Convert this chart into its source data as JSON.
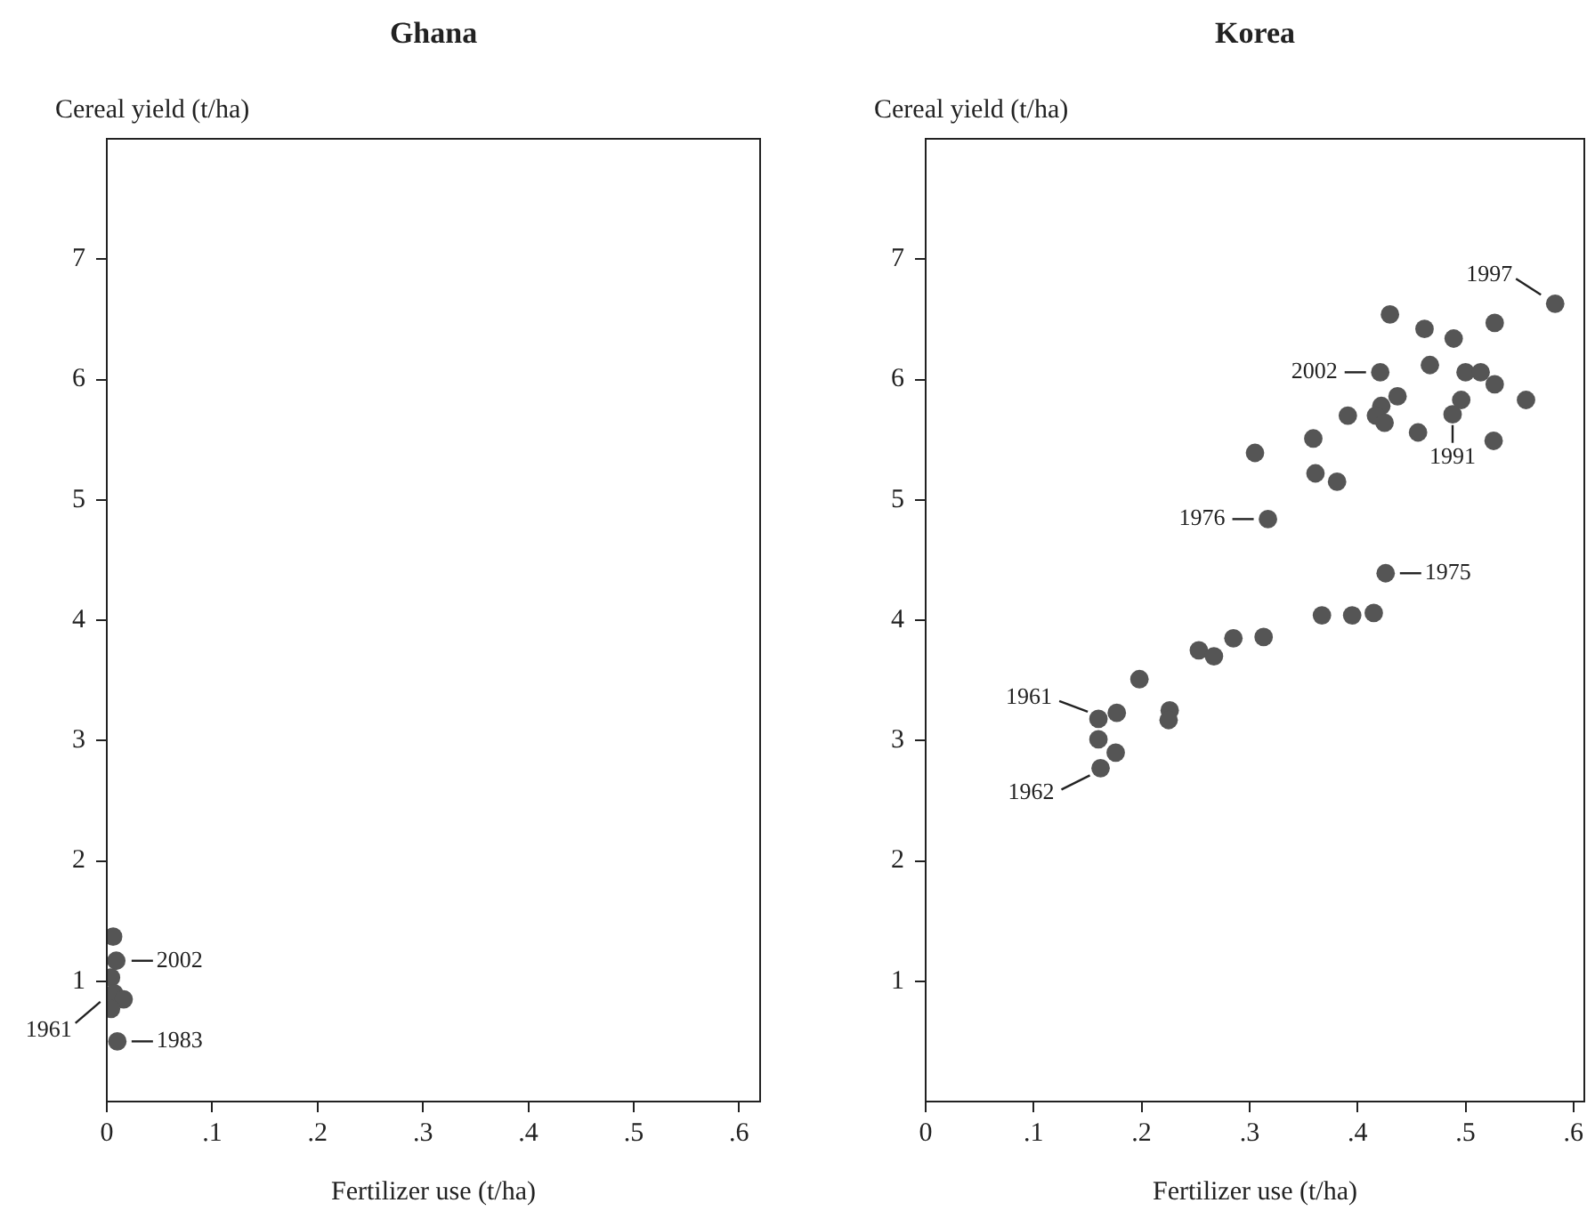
{
  "chart_data": [
    {
      "type": "scatter",
      "title": "Ghana",
      "xlabel": "Fertilizer use (t/ha)",
      "ylabel": "Cereal yield (t/ha)",
      "xlim": [
        0,
        0.62
      ],
      "ylim": [
        0,
        8
      ],
      "xticks": [
        0,
        {
          "value": 0.1,
          "label": ".1"
        },
        {
          "value": 0.2,
          "label": ".2"
        },
        {
          "value": 0.3,
          "label": ".3"
        },
        {
          "value": 0.4,
          "label": ".4"
        },
        {
          "value": 0.5,
          "label": ".5"
        },
        {
          "value": 0.6,
          "label": ".6"
        }
      ],
      "yticks": [
        1,
        2,
        3,
        4,
        5,
        6,
        7
      ],
      "grid": false,
      "legend": false,
      "marker": "circle",
      "series": [
        {
          "color": "#555555",
          "x": [
            0.006,
            0.009,
            0.004,
            0.007,
            0.016,
            0.004,
            0.01
          ],
          "values": [
            1.37,
            1.17,
            1.03,
            0.9,
            0.85,
            0.77,
            0.5
          ]
        }
      ],
      "annotations": [
        {
          "text": "2002",
          "x": 0.01,
          "y": 1.17
        },
        {
          "text": "1961",
          "x": 0.004,
          "y": 0.77
        },
        {
          "text": "1983",
          "x": 0.01,
          "y": 0.5
        }
      ]
    },
    {
      "type": "scatter",
      "title": "Korea",
      "xlabel": "Fertilizer use (t/ha)",
      "ylabel": "Cereal yield (t/ha)",
      "xlim": [
        0,
        0.61
      ],
      "ylim": [
        0,
        8
      ],
      "xticks": [
        0,
        {
          "value": 0.1,
          "label": ".1"
        },
        {
          "value": 0.2,
          "label": ".2"
        },
        {
          "value": 0.3,
          "label": ".3"
        },
        {
          "value": 0.4,
          "label": ".4"
        },
        {
          "value": 0.5,
          "label": ".5"
        },
        {
          "value": 0.6,
          "label": ".6"
        }
      ],
      "yticks": [
        1,
        2,
        3,
        4,
        5,
        6,
        7
      ],
      "grid": false,
      "legend": false,
      "marker": "circle",
      "series": [
        {
          "color": "#555555",
          "x": [
            0.583,
            0.43,
            0.462,
            0.489,
            0.527,
            0.421,
            0.467,
            0.5,
            0.514,
            0.527,
            0.437,
            0.422,
            0.496,
            0.556,
            0.391,
            0.417,
            0.425,
            0.488,
            0.456,
            0.526,
            0.359,
            0.305,
            0.361,
            0.381,
            0.317,
            0.426,
            0.367,
            0.395,
            0.415,
            0.253,
            0.267,
            0.285,
            0.313,
            0.198,
            0.16,
            0.177,
            0.226,
            0.225,
            0.16,
            0.176,
            0.162
          ],
          "values": [
            6.63,
            6.54,
            6.42,
            6.34,
            6.47,
            6.06,
            6.12,
            6.06,
            6.06,
            5.96,
            5.86,
            5.78,
            5.83,
            5.83,
            5.7,
            5.7,
            5.64,
            5.71,
            5.56,
            5.49,
            5.51,
            5.39,
            5.22,
            5.15,
            4.84,
            4.39,
            4.04,
            4.04,
            4.06,
            3.75,
            3.7,
            3.85,
            3.86,
            3.51,
            3.18,
            3.23,
            3.25,
            3.17,
            3.01,
            2.9,
            2.77
          ]
        }
      ],
      "annotations": [
        {
          "text": "1997",
          "x": 0.583,
          "y": 6.63
        },
        {
          "text": "2002",
          "x": 0.421,
          "y": 6.06
        },
        {
          "text": "1991",
          "x": 0.488,
          "y": 5.71
        },
        {
          "text": "1976",
          "x": 0.317,
          "y": 4.84
        },
        {
          "text": "1975",
          "x": 0.426,
          "y": 4.39
        },
        {
          "text": "1961",
          "x": 0.16,
          "y": 3.18
        },
        {
          "text": "1962",
          "x": 0.162,
          "y": 2.77
        }
      ]
    }
  ]
}
